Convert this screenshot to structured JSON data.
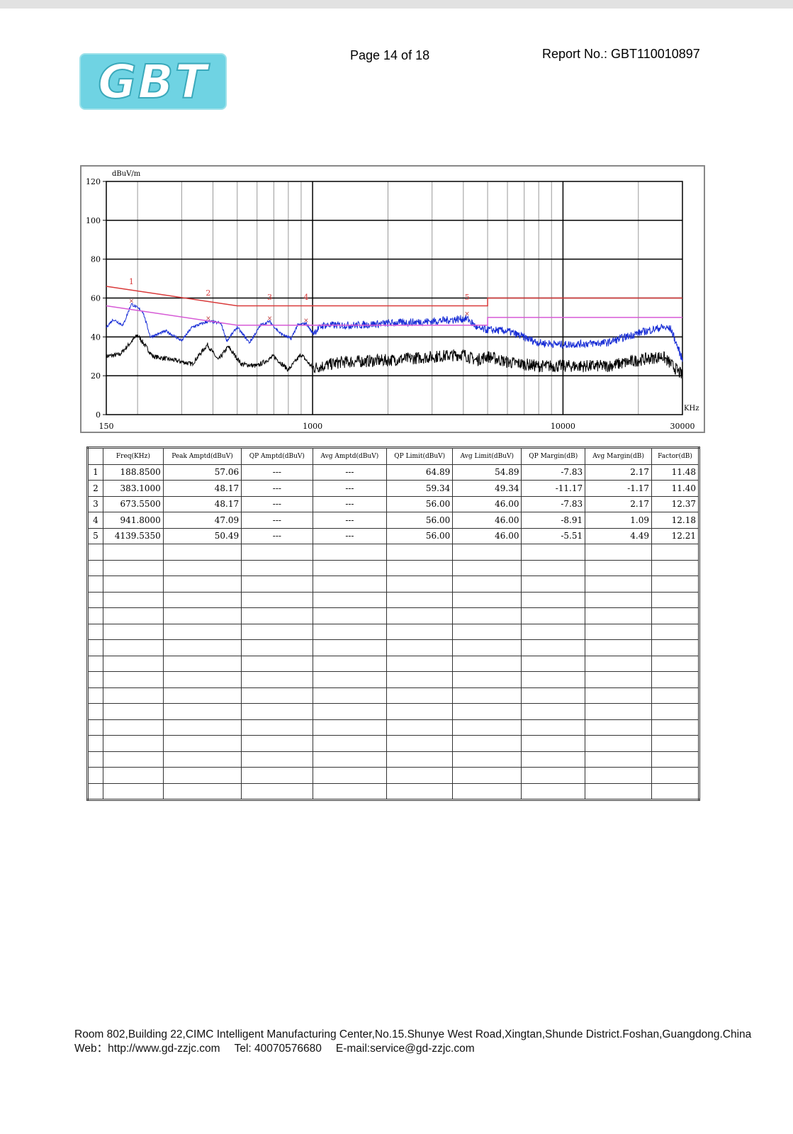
{
  "header": {
    "logo_text": "GBT",
    "page_label": "Page  14 of  18",
    "report_no": "Report No.: GBT110010897"
  },
  "chart_data": {
    "type": "line",
    "ylabel": "dBuV/m",
    "xlabel": "KHz",
    "x_scale": "log",
    "xlim": [
      150,
      30000
    ],
    "ylim": [
      0,
      120
    ],
    "y_ticks": [
      0,
      20,
      40,
      60,
      80,
      100,
      120
    ],
    "x_tick_labels": [
      "150",
      "1000",
      "10000",
      "30000"
    ],
    "grid": true,
    "colors": {
      "qp_limit": "#d93a3a",
      "avg_limit": "#d65ad6",
      "peak": "#1a2fd6",
      "average": "#000000"
    },
    "qp_limit": [
      [
        150,
        66
      ],
      [
        500,
        56
      ],
      [
        5000,
        56
      ],
      [
        5000,
        60
      ],
      [
        30000,
        60
      ]
    ],
    "avg_limit": [
      [
        150,
        56
      ],
      [
        500,
        46
      ],
      [
        5000,
        46
      ],
      [
        5000,
        50
      ],
      [
        30000,
        50
      ]
    ],
    "peak_trace": [
      [
        150,
        45
      ],
      [
        160,
        49
      ],
      [
        175,
        46
      ],
      [
        188.85,
        57
      ],
      [
        210,
        53
      ],
      [
        225,
        40
      ],
      [
        260,
        43
      ],
      [
        300,
        38
      ],
      [
        330,
        45
      ],
      [
        383.1,
        48
      ],
      [
        430,
        47
      ],
      [
        455,
        38
      ],
      [
        500,
        45
      ],
      [
        560,
        37
      ],
      [
        620,
        46
      ],
      [
        673.55,
        48
      ],
      [
        740,
        42
      ],
      [
        820,
        39
      ],
      [
        870,
        46
      ],
      [
        941.8,
        47
      ],
      [
        1000,
        42
      ],
      [
        1100,
        46
      ],
      [
        1500,
        46
      ],
      [
        2000,
        47
      ],
      [
        3000,
        48
      ],
      [
        4139.535,
        49.5
      ],
      [
        4600,
        44
      ],
      [
        6000,
        43
      ],
      [
        8000,
        37
      ],
      [
        10000,
        36
      ],
      [
        15000,
        37
      ],
      [
        20000,
        42
      ],
      [
        25000,
        45
      ],
      [
        27000,
        44
      ],
      [
        30000,
        28
      ]
    ],
    "average_trace": [
      [
        150,
        30
      ],
      [
        170,
        31
      ],
      [
        200,
        41
      ],
      [
        230,
        30
      ],
      [
        280,
        28
      ],
      [
        330,
        26
      ],
      [
        380,
        36
      ],
      [
        420,
        28
      ],
      [
        460,
        35
      ],
      [
        520,
        26
      ],
      [
        600,
        25
      ],
      [
        700,
        30
      ],
      [
        800,
        23
      ],
      [
        900,
        31
      ],
      [
        1000,
        24
      ],
      [
        1300,
        27
      ],
      [
        2000,
        28
      ],
      [
        4000,
        31
      ],
      [
        4500,
        28
      ],
      [
        5000,
        30
      ],
      [
        6000,
        27
      ],
      [
        8000,
        25
      ],
      [
        10000,
        25
      ],
      [
        15000,
        25
      ],
      [
        20000,
        28
      ],
      [
        25000,
        30
      ],
      [
        28000,
        24
      ],
      [
        30000,
        20
      ]
    ],
    "markers": [
      {
        "label": "1",
        "freq": 188.85,
        "level": 57.06
      },
      {
        "label": "2",
        "freq": 383.1,
        "level": 48.17
      },
      {
        "label": "3",
        "freq": 673.55,
        "level": 48.17
      },
      {
        "label": "4",
        "freq": 941.8,
        "level": 47.09
      },
      {
        "label": "5",
        "freq": 4139.535,
        "level": 50.49
      }
    ]
  },
  "table": {
    "headers": [
      "Freq(KHz)",
      "Peak Amptd(dBuV)",
      "QP Amptd(dBuV)",
      "Avg Amptd(dBuV)",
      "QP Limit(dBuV)",
      "Avg Limit(dBuV)",
      "QP Margin(dB)",
      "Avg Margin(dB)",
      "Factor(dB)"
    ],
    "rows": [
      [
        "1",
        "188.8500",
        "57.06",
        "---",
        "---",
        "64.89",
        "54.89",
        "-7.83",
        "2.17",
        "11.48"
      ],
      [
        "2",
        "383.1000",
        "48.17",
        "---",
        "---",
        "59.34",
        "49.34",
        "-11.17",
        "-1.17",
        "11.40"
      ],
      [
        "3",
        "673.5500",
        "48.17",
        "---",
        "---",
        "56.00",
        "46.00",
        "-7.83",
        "2.17",
        "12.37"
      ],
      [
        "4",
        "941.8000",
        "47.09",
        "---",
        "---",
        "56.00",
        "46.00",
        "-8.91",
        "1.09",
        "12.18"
      ],
      [
        "5",
        "4139.5350",
        "50.49",
        "---",
        "---",
        "56.00",
        "46.00",
        "-5.51",
        "4.49",
        "12.21"
      ]
    ]
  },
  "footer": {
    "address": "Room 802,Building 22,CIMC Intelligent Manufacturing Center,No.15.Shunye West Road,Xingtan,Shunde District.Foshan,Guangdong.China",
    "web": "Web：http://www.gd-zzjc.com",
    "tel": "Tel: 40070576680",
    "email": "E-mail:service@gd-zzjc.com"
  }
}
